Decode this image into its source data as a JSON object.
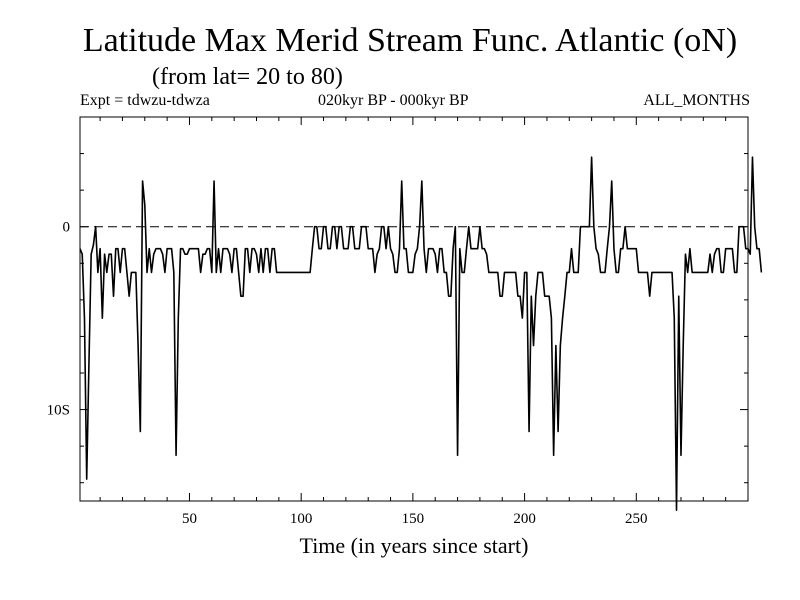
{
  "chart_data": {
    "type": "line",
    "title": "Latitude Max Merid Stream Func. Atlantic (oN)",
    "subtitle": "(from lat= 20 to 80)",
    "experiment_label": "Expt = tdwzu-tdwza",
    "period_label": "020kyr BP - 000kyr BP",
    "months_label": "ALL_MONTHS",
    "xlabel": "Time (in years since start)",
    "ylabel": "",
    "xlim": [
      1,
      300
    ],
    "ylim": [
      -15,
      6
    ],
    "x_ticks": [
      50,
      100,
      150,
      200,
      250
    ],
    "y_ticks": [
      {
        "value": 0,
        "label": "0"
      },
      {
        "value": -10,
        "label": "10S"
      }
    ],
    "zero_line": "dashed",
    "grid": false,
    "series": [
      {
        "values": [
          -1.2,
          -1.5,
          -5,
          -13.8,
          -7.5,
          -1.5,
          -1,
          0,
          -2.5,
          -1.2,
          -5,
          -1.5,
          -2.5,
          -1.5,
          -1.5,
          -3.8,
          -1.2,
          -1.2,
          -2.5,
          -1.2,
          -1.2,
          -2.5,
          -3.8,
          -2.5,
          -2.5,
          -2.5,
          -6.5,
          -11.2,
          2.5,
          1.2,
          -2.5,
          -1.2,
          -2.5,
          -1.5,
          -1.2,
          -1.2,
          -1.2,
          -1.5,
          -2.5,
          -1.2,
          -1.2,
          -1.2,
          -2.5,
          -12.5,
          -5,
          -1.2,
          -1.2,
          -1.5,
          -1.5,
          -1.2,
          -1.2,
          -1.2,
          -1.2,
          -1.2,
          -2.5,
          -1.5,
          -1.5,
          -1.2,
          -1.2,
          -2.5,
          2.5,
          -2.5,
          -1.2,
          -2.5,
          -1.2,
          -1.2,
          -1.2,
          -1.5,
          -2.5,
          -1.2,
          -1.2,
          -2.5,
          -3.8,
          -3.8,
          -1.2,
          -1.2,
          -2.5,
          -1.2,
          -1.2,
          -1.5,
          -2.5,
          -1.2,
          -2.5,
          -1.2,
          -1.2,
          -2.5,
          -1.2,
          -1.2,
          -2.5,
          -2.5,
          -2.5,
          -2.5,
          -2.5,
          -2.5,
          -2.5,
          -2.5,
          -2.5,
          -2.5,
          -2.5,
          -2.5,
          -2.5,
          -2.5,
          -2.5,
          -2.5,
          -1.2,
          0,
          0,
          -1.2,
          -1.2,
          0,
          0,
          -1.2,
          -1.2,
          0,
          0,
          -1.2,
          0,
          0,
          -1.2,
          -1.2,
          -1.2,
          0,
          0,
          -1.2,
          -1.2,
          -1.2,
          0,
          0,
          0,
          -1.2,
          -1.2,
          -1.2,
          -2.5,
          -1.5,
          -1.2,
          0,
          0,
          -1.2,
          0,
          -1.2,
          -1.5,
          -2.5,
          -2.5,
          -1.2,
          2.5,
          -1.2,
          -1.2,
          -2.5,
          -2.5,
          -2.5,
          -1.5,
          -1.2,
          0,
          2.5,
          -1.2,
          -2.5,
          -1.2,
          -1.2,
          -1.2,
          -1.5,
          -2.5,
          -1.2,
          -1.2,
          -2.5,
          -2.5,
          -3.8,
          -3.8,
          -1.2,
          0,
          -12.5,
          -1.2,
          -2.5,
          -2.5,
          -1.2,
          0,
          -1.2,
          -1.2,
          -1.2,
          -1.2,
          0,
          -1.2,
          -1.2,
          -1.5,
          -2.5,
          -2.5,
          -2.5,
          -2.5,
          -2.5,
          -3.8,
          -3.8,
          -2.5,
          -2.5,
          -2.5,
          -2.5,
          -2.5,
          -2.5,
          -3.8,
          -3.8,
          -5,
          -2.5,
          -2.5,
          -11.2,
          -3.8,
          -6.5,
          -3.8,
          -2.5,
          -2.5,
          -2.5,
          -3.8,
          -3.8,
          -3.8,
          -5,
          -12.5,
          -6.5,
          -11.2,
          -6.5,
          -5,
          -3.8,
          -2.5,
          -2.5,
          -1.2,
          -2.5,
          -2.5,
          -2.5,
          0,
          0,
          0,
          0,
          0,
          3.8,
          0,
          -1.2,
          -1.5,
          -2.5,
          -2.5,
          -2.5,
          -1.2,
          0,
          2.5,
          -1.2,
          -2.5,
          -2.5,
          -1.2,
          -1.2,
          0,
          -1.2,
          -1.2,
          -1.2,
          -1.2,
          -1.2,
          -2.5,
          -2.5,
          -2.5,
          -2.5,
          -2.5,
          -3.8,
          -2.5,
          -2.5,
          -2.5,
          -2.5,
          -2.5,
          -2.5,
          -2.5,
          -2.5,
          -2.5,
          -2.5,
          -5,
          -15.5,
          -3.8,
          -12.5,
          -6.5,
          -1.5,
          -2.5,
          -1.2,
          -2.5,
          -2.5,
          -2.5,
          -2.5,
          -2.5,
          -2.5,
          -2.5,
          -2.5,
          -1.5,
          -2.5,
          -1.5,
          -1.2,
          -1.2,
          -2.5,
          -2.5,
          -1.2,
          -1.2,
          -1.2,
          -1.2,
          -2.5,
          -2.5,
          0,
          0,
          0,
          -1.2,
          -1.2,
          -1.5,
          3.8,
          0,
          -1.2,
          -1.2,
          -2.5
        ]
      }
    ]
  }
}
